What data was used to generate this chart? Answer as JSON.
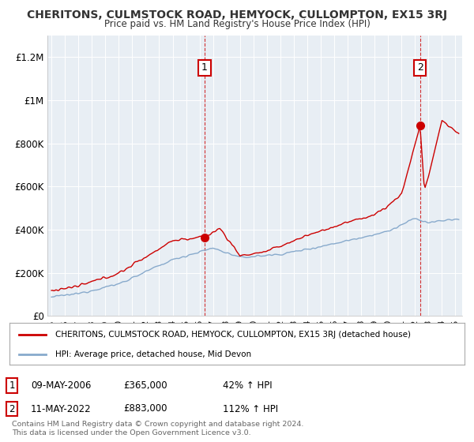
{
  "title": "CHERITONS, CULMSTOCK ROAD, HEMYOCK, CULLOMPTON, EX15 3RJ",
  "subtitle": "Price paid vs. HM Land Registry's House Price Index (HPI)",
  "ylabel_ticks": [
    "£0",
    "£200K",
    "£400K",
    "£600K",
    "£800K",
    "£1M",
    "£1.2M"
  ],
  "ytick_values": [
    0,
    200000,
    400000,
    600000,
    800000,
    1000000,
    1200000
  ],
  "ylim": [
    0,
    1300000
  ],
  "xlim_start": 1994.7,
  "xlim_end": 2025.5,
  "xticks": [
    1995,
    1996,
    1997,
    1998,
    1999,
    2000,
    2001,
    2002,
    2003,
    2004,
    2005,
    2006,
    2007,
    2008,
    2009,
    2010,
    2011,
    2012,
    2013,
    2014,
    2015,
    2016,
    2017,
    2018,
    2019,
    2020,
    2021,
    2022,
    2023,
    2024,
    2025
  ],
  "sale1_x": 2006.37,
  "sale1_y": 365000,
  "sale2_x": 2022.37,
  "sale2_y": 883000,
  "vline1_x": 2006.37,
  "vline2_x": 2022.37,
  "legend_line1": "CHERITONS, CULMSTOCK ROAD, HEMYOCK, CULLOMPTON, EX15 3RJ (detached house)",
  "legend_line2": "HPI: Average price, detached house, Mid Devon",
  "table_row1_num": "1",
  "table_row1_date": "09-MAY-2006",
  "table_row1_price": "£365,000",
  "table_row1_hpi": "42% ↑ HPI",
  "table_row2_num": "2",
  "table_row2_date": "11-MAY-2022",
  "table_row2_price": "£883,000",
  "table_row2_hpi": "112% ↑ HPI",
  "footer": "Contains HM Land Registry data © Crown copyright and database right 2024.\nThis data is licensed under the Open Government Licence v3.0.",
  "red_color": "#cc0000",
  "blue_color": "#88aacc",
  "chart_bg": "#e8eef4",
  "background_color": "#ffffff",
  "grid_color": "#ffffff"
}
